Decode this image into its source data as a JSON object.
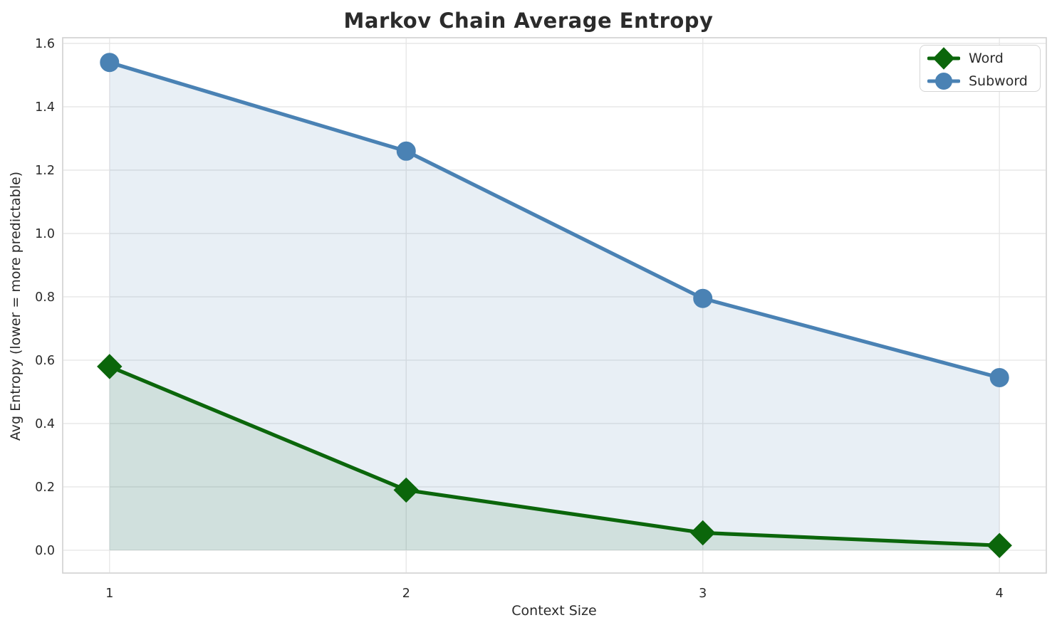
{
  "chart_data": {
    "type": "line",
    "title": "Markov Chain Average Entropy",
    "xlabel": "Context Size",
    "ylabel": "Avg Entropy (lower = more predictable)",
    "x": [
      1,
      2,
      3,
      4
    ],
    "x_tick_labels": [
      "1",
      "2",
      "3",
      "4"
    ],
    "y_tick_labels": [
      "0.0",
      "0.2",
      "0.4",
      "0.6",
      "0.8",
      "1.0",
      "1.2",
      "1.4",
      "1.6"
    ],
    "xlim": [
      0.842,
      4.158
    ],
    "ylim": [
      -0.072,
      1.618
    ],
    "grid": true,
    "legend_position": "upper right",
    "area_fill_to_zero": true,
    "series": [
      {
        "name": "Word",
        "marker": "diamond",
        "color": "#0b660b",
        "fill": "rgba(11,102,11,0.11)",
        "values": [
          0.58,
          0.19,
          0.055,
          0.015
        ]
      },
      {
        "name": "Subword",
        "marker": "circle",
        "color": "#4a82b4",
        "fill": "rgba(74,130,180,0.13)",
        "values": [
          1.54,
          1.26,
          0.795,
          0.545
        ]
      }
    ],
    "colors": {
      "grid": "#e7e7e7",
      "spine": "#d0d0d0",
      "text": "#2b2b2b"
    }
  }
}
